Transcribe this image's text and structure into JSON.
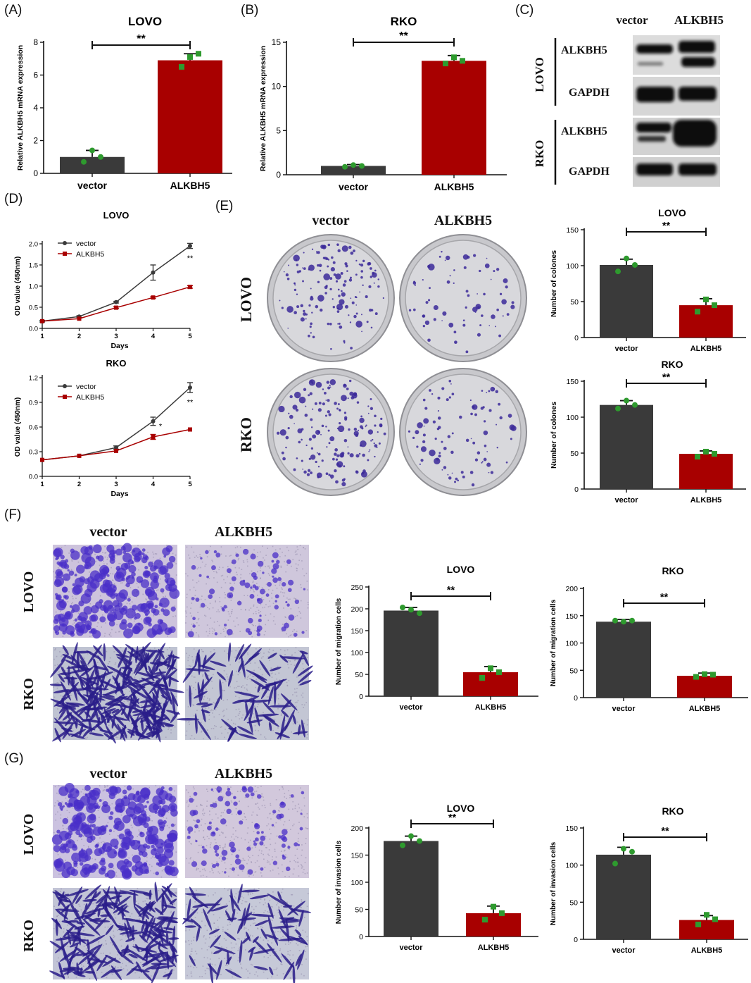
{
  "panel_labels": [
    "(A)",
    "(B)",
    "(C)",
    "(D)",
    "(E)",
    "(F)",
    "(G)"
  ],
  "colors": {
    "vector": "#3a3a3a",
    "alkbh5": "#a80000",
    "dots": "#2e9a2e",
    "stain": "#3c2a9a",
    "well_bg": "#d8d8dc",
    "cell_bg": "#c9bfd4"
  },
  "western": {
    "col_headers": [
      "vector",
      "ALKBH5"
    ],
    "groups": [
      {
        "name": "LOVO",
        "bands": [
          "ALKBH5",
          "GAPDH"
        ]
      },
      {
        "name": "RKO",
        "bands": [
          "ALKBH5",
          "GAPDH"
        ]
      }
    ]
  },
  "image_panels": {
    "E": {
      "col_headers": [
        "vector",
        "ALKBH5"
      ],
      "row_headers": [
        "LOVO",
        "RKO"
      ]
    },
    "F": {
      "col_headers": [
        "vector",
        "ALKBH5"
      ],
      "row_headers": [
        "LOVO",
        "RKO"
      ]
    },
    "G": {
      "col_headers": [
        "vector",
        "ALKBH5"
      ],
      "row_headers": [
        "LOVO",
        "RKO"
      ]
    }
  },
  "chart_data": [
    {
      "id": "A",
      "type": "bar",
      "title": "LOVO",
      "ylabel": "Relative ALKBH5 mRNA expression",
      "xlabel": "",
      "categories": [
        "vector",
        "ALKBH5"
      ],
      "values": [
        1.0,
        6.9
      ],
      "errors": [
        0.4,
        0.4
      ],
      "points": [
        [
          0.7,
          1.4,
          1.0
        ],
        [
          6.5,
          7.1,
          7.3
        ]
      ],
      "ylim": [
        0,
        8
      ],
      "yticks": [
        0,
        2,
        4,
        6,
        8
      ],
      "sig": "**"
    },
    {
      "id": "B",
      "type": "bar",
      "title": "RKO",
      "ylabel": "Relative ALKBH5 mRNA expression",
      "xlabel": "",
      "categories": [
        "vector",
        "ALKBH5"
      ],
      "values": [
        1.0,
        12.9
      ],
      "errors": [
        0.15,
        0.6
      ],
      "points": [
        [
          0.9,
          1.1,
          1.0
        ],
        [
          12.6,
          13.3,
          12.9
        ]
      ],
      "ylim": [
        0,
        15
      ],
      "yticks": [
        0,
        5,
        10,
        15
      ],
      "sig": "**"
    },
    {
      "id": "D1",
      "type": "line",
      "title": "LOVO",
      "xlabel": "Days",
      "ylabel": "OD value (450nm)",
      "x": [
        1,
        2,
        3,
        4,
        5
      ],
      "xlim": [
        1,
        5
      ],
      "ylim": [
        0,
        2.0
      ],
      "yticks": [
        0.0,
        0.5,
        1.0,
        1.5,
        2.0
      ],
      "series": [
        {
          "name": "vector",
          "values": [
            0.17,
            0.28,
            0.62,
            1.32,
            1.95
          ],
          "errors": [
            0.02,
            0.02,
            0.02,
            0.18,
            0.06
          ]
        },
        {
          "name": "ALKBH5",
          "values": [
            0.17,
            0.23,
            0.49,
            0.73,
            0.98
          ],
          "errors": [
            0.01,
            0.01,
            0.02,
            0.02,
            0.03
          ]
        }
      ],
      "annotations": [
        {
          "x": 5,
          "y": 1.6,
          "text": "**"
        }
      ]
    },
    {
      "id": "D2",
      "type": "line",
      "title": "RKO",
      "xlabel": "Days",
      "ylabel": "OD value (450nm)",
      "x": [
        1,
        2,
        3,
        4,
        5
      ],
      "xlim": [
        1,
        5
      ],
      "ylim": [
        0,
        1.2
      ],
      "yticks": [
        0.0,
        0.3,
        0.6,
        0.9,
        1.2
      ],
      "series": [
        {
          "name": "vector",
          "values": [
            0.2,
            0.25,
            0.35,
            0.67,
            1.08
          ],
          "errors": [
            0.01,
            0.01,
            0.02,
            0.05,
            0.06
          ]
        },
        {
          "name": "ALKBH5",
          "values": [
            0.2,
            0.25,
            0.31,
            0.48,
            0.57
          ],
          "errors": [
            0.01,
            0.01,
            0.01,
            0.03,
            0.01
          ]
        }
      ],
      "annotations": [
        {
          "x": 4.2,
          "y": 0.58,
          "text": "*"
        },
        {
          "x": 5,
          "y": 0.87,
          "text": "**"
        }
      ]
    },
    {
      "id": "E1",
      "type": "bar",
      "title": "LOVO",
      "ylabel": "Number of colones",
      "xlabel": "",
      "categories": [
        "vector",
        "ALKBH5"
      ],
      "values": [
        101,
        45
      ],
      "errors": [
        8,
        9
      ],
      "points": [
        [
          92,
          110,
          101
        ],
        [
          36,
          53,
          45
        ]
      ],
      "ylim": [
        0,
        150
      ],
      "yticks": [
        0,
        50,
        100,
        150
      ],
      "sig": "**"
    },
    {
      "id": "E2",
      "type": "bar",
      "title": "RKO",
      "ylabel": "Number of colones",
      "xlabel": "",
      "categories": [
        "vector",
        "ALKBH5"
      ],
      "values": [
        117,
        49
      ],
      "errors": [
        6,
        4
      ],
      "points": [
        [
          112,
          123,
          117
        ],
        [
          45,
          52,
          49
        ]
      ],
      "ylim": [
        0,
        150
      ],
      "yticks": [
        0,
        50,
        100,
        150
      ],
      "sig": "**"
    },
    {
      "id": "F1",
      "type": "bar",
      "title": "LOVO",
      "ylabel": "Number of migration cells",
      "xlabel": "",
      "categories": [
        "vector",
        "ALKBH5"
      ],
      "values": [
        196,
        55
      ],
      "errors": [
        7,
        13
      ],
      "points": [
        [
          203,
          198,
          190
        ],
        [
          42,
          64,
          55
        ]
      ],
      "ylim": [
        0,
        250
      ],
      "yticks": [
        0,
        50,
        100,
        150,
        200,
        250
      ],
      "sig": "**"
    },
    {
      "id": "F2",
      "type": "bar",
      "title": "RKO",
      "ylabel": "Number of migration cells",
      "xlabel": "",
      "categories": [
        "vector",
        "ALKBH5"
      ],
      "values": [
        139,
        40
      ],
      "errors": [
        4,
        5
      ],
      "points": [
        [
          141,
          139,
          141
        ],
        [
          38,
          43,
          42
        ]
      ],
      "ylim": [
        0,
        200
      ],
      "yticks": [
        0,
        50,
        100,
        150,
        200
      ],
      "sig": "**"
    },
    {
      "id": "G1",
      "type": "bar",
      "title": "LOVO",
      "ylabel": "Number of invasion cells",
      "xlabel": "",
      "categories": [
        "vector",
        "ALKBH5"
      ],
      "values": [
        176,
        43
      ],
      "errors": [
        9,
        13
      ],
      "points": [
        [
          168,
          185,
          176
        ],
        [
          31,
          55,
          43
        ]
      ],
      "ylim": [
        0,
        200
      ],
      "yticks": [
        0,
        50,
        100,
        150,
        200
      ],
      "sig": "**"
    },
    {
      "id": "G2",
      "type": "bar",
      "title": "RKO",
      "ylabel": "Number of invasion cells",
      "xlabel": "",
      "categories": [
        "vector",
        "ALKBH5"
      ],
      "values": [
        114,
        26
      ],
      "errors": [
        10,
        6
      ],
      "points": [
        [
          102,
          122,
          118
        ],
        [
          20,
          33,
          27
        ]
      ],
      "ylim": [
        0,
        150
      ],
      "yticks": [
        0,
        50,
        100,
        150
      ],
      "sig": "**"
    }
  ]
}
